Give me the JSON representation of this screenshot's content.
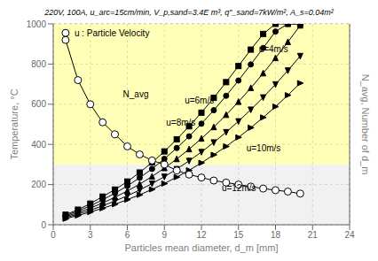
{
  "chart_data": {
    "type": "line",
    "title": "220V, 100A, u_arc=15cm/min, V_p,sand=3.4E m³, q''_sand=7kW/m², A_s=0.04m²",
    "x_label": "Particles mean diameter, d_m [mm]",
    "y_label": "Temperature, °C",
    "y2_label": "N_avg, Number of d_m",
    "x": [
      1,
      2,
      3,
      4,
      5,
      6,
      7,
      8,
      9,
      10,
      11,
      12,
      13,
      14,
      15,
      16,
      17,
      18,
      19,
      20
    ],
    "xlim": [
      0,
      24
    ],
    "xticks": [
      0,
      3,
      6,
      9,
      12,
      15,
      18,
      21,
      24
    ],
    "ylim": [
      0,
      1000
    ],
    "yticks": [
      0,
      200,
      400,
      600,
      800,
      1000
    ],
    "grid": true,
    "regions": [
      {
        "from": 300,
        "to": 1000,
        "color": "#FFFF99"
      },
      {
        "from": 0,
        "to": 300,
        "color": "#EBEBEB"
      }
    ],
    "series": [
      {
        "name": "u=4m/s",
        "color": "#000000",
        "marker": "square",
        "line_style": "solid",
        "values": [
          50,
          75,
          105,
          140,
          175,
          215,
          260,
          310,
          365,
          425,
          490,
          558,
          632,
          710,
          790,
          872,
          950,
          1000,
          1000,
          1000
        ]
      },
      {
        "name": "u=6m/s",
        "color": "#000000",
        "marker": "circle",
        "line_style": "solid",
        "values": [
          45,
          68,
          94,
          124,
          157,
          193,
          234,
          278,
          328,
          382,
          440,
          503,
          570,
          642,
          718,
          798,
          880,
          962,
          1000,
          1000
        ]
      },
      {
        "name": "u=8m/s",
        "color": "#000000",
        "marker": "triangle_up",
        "line_style": "solid",
        "values": [
          40,
          60,
          83,
          108,
          137,
          168,
          202,
          240,
          282,
          327,
          376,
          429,
          486,
          547,
          612,
          681,
          754,
          830,
          910,
          992
        ]
      },
      {
        "name": "u=10m/s",
        "color": "#000000",
        "marker": "triangle_down",
        "line_style": "solid",
        "values": [
          35,
          53,
          72,
          94,
          118,
          144,
          173,
          205,
          239,
          277,
          318,
          362,
          410,
          461,
          515,
          573,
          634,
          699,
          768,
          840
        ]
      },
      {
        "name": "u=12m/s",
        "color": "#000000",
        "marker": "triangle_right",
        "line_style": "solid",
        "values": [
          30,
          46,
          63,
          82,
          102,
          125,
          149,
          176,
          205,
          237,
          271,
          308,
          348,
          390,
          435,
          483,
          534,
          588,
          645,
          705
        ]
      },
      {
        "name": "N_avg",
        "color": "#000000",
        "marker": "open_circle",
        "line_style": "solid",
        "values": [
          920,
          720,
          600,
          510,
          450,
          390,
          350,
          320,
          300,
          270,
          250,
          235,
          220,
          210,
          200,
          190,
          180,
          172,
          165,
          155
        ]
      }
    ],
    "annotations": [
      {
        "text": "u=4m/s",
        "x": 16.5,
        "y": 875
      },
      {
        "text": "u=6m/s",
        "x": 10.5,
        "y": 620
      },
      {
        "text": "u=8m/s",
        "x": 9.0,
        "y": 510
      },
      {
        "text": "u=10m/s",
        "x": 15.5,
        "y": 380
      },
      {
        "text": "u=12m/s",
        "x": 13.5,
        "y": 185
      },
      {
        "text": "u : Particle Velocity",
        "x": 1.0,
        "y": 955,
        "marker": "open_circle"
      },
      {
        "text": "N_avg",
        "x": 5.5,
        "y": 650
      }
    ]
  }
}
